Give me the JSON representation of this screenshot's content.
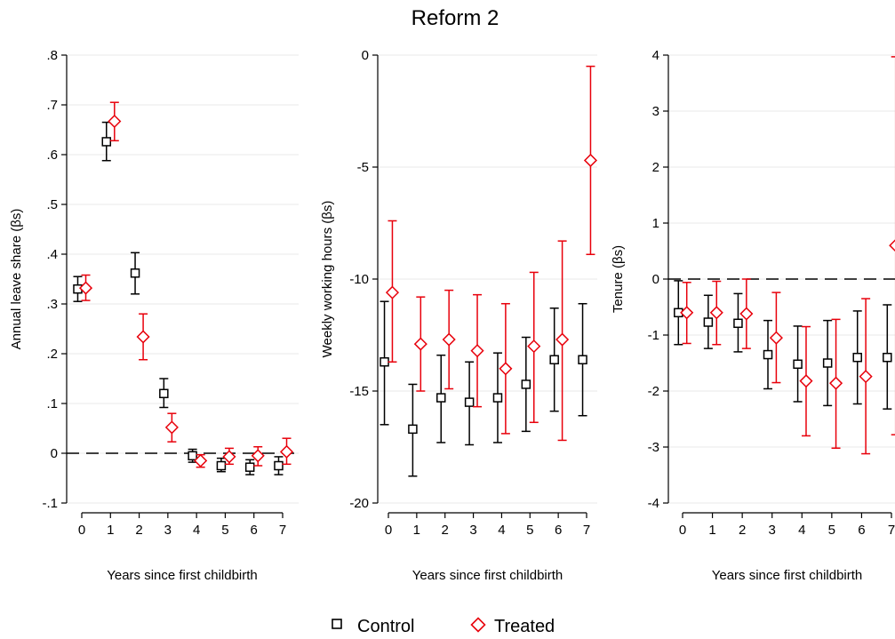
{
  "title": "Reform 2",
  "colors": {
    "control": "#000000",
    "treated": "#e8000b",
    "axis": "#000000",
    "grid": "#eaeaea",
    "zero_line": "#000000"
  },
  "legend": {
    "placement": "bottom-center",
    "items": [
      {
        "label": "Control",
        "marker": "square",
        "color": "#000000"
      },
      {
        "label": "Treated",
        "marker": "diamond",
        "color": "#e8000b"
      }
    ]
  },
  "chart_data": [
    {
      "type": "scatter",
      "subtype": "point-estimates-with-confidence-intervals",
      "xlabel": "Years since first childbirth",
      "ylabel": "Annual leave share (βs)",
      "x_ticks": [
        "0",
        "1",
        "2",
        "3",
        "4",
        "5",
        "6",
        "7"
      ],
      "y_ticks": [
        -0.1,
        0,
        0.1,
        0.2,
        0.3,
        0.4,
        0.5,
        0.6,
        0.7,
        0.8
      ],
      "y_tick_labels": [
        "-.1",
        "0",
        ".1",
        ".2",
        ".3",
        ".4",
        ".5",
        ".6",
        ".7",
        ".8"
      ],
      "ylim": [
        -0.1,
        0.8
      ],
      "grid": true,
      "reference_line": 0,
      "series": [
        {
          "name": "Control",
          "marker": "square",
          "x": [
            0,
            1,
            2,
            3,
            4,
            5,
            6,
            7
          ],
          "y": [
            0.33,
            0.626,
            0.362,
            0.12,
            -0.005,
            -0.025,
            -0.028,
            -0.025
          ],
          "lo": [
            0.305,
            0.588,
            0.32,
            0.092,
            -0.018,
            -0.037,
            -0.043,
            -0.043
          ],
          "hi": [
            0.355,
            0.665,
            0.403,
            0.15,
            0.008,
            -0.01,
            -0.013,
            -0.007
          ]
        },
        {
          "name": "Treated",
          "marker": "diamond",
          "x": [
            0,
            1,
            2,
            3,
            4,
            5,
            6,
            7
          ],
          "y": [
            0.332,
            0.667,
            0.234,
            0.052,
            -0.015,
            -0.007,
            -0.005,
            0.003
          ],
          "lo": [
            0.307,
            0.628,
            0.188,
            0.023,
            -0.028,
            -0.022,
            -0.025,
            -0.022
          ],
          "hi": [
            0.358,
            0.705,
            0.28,
            0.08,
            -0.003,
            0.01,
            0.013,
            0.03
          ]
        }
      ]
    },
    {
      "type": "scatter",
      "subtype": "point-estimates-with-confidence-intervals",
      "xlabel": "Years since first childbirth",
      "ylabel": "Weekly working hours (βs)",
      "x_ticks": [
        "0",
        "1",
        "2",
        "3",
        "4",
        "5",
        "6",
        "7"
      ],
      "y_ticks": [
        -20,
        -15,
        -10,
        -5,
        0
      ],
      "y_tick_labels": [
        "-20",
        "-15",
        "-10",
        "-5",
        "0"
      ],
      "ylim": [
        -20,
        0
      ],
      "grid": true,
      "reference_line": null,
      "series": [
        {
          "name": "Control",
          "marker": "square",
          "x": [
            0,
            1,
            2,
            3,
            4,
            5,
            6,
            7
          ],
          "y": [
            -13.7,
            -16.7,
            -15.3,
            -15.5,
            -15.3,
            -14.7,
            -13.6,
            -13.6
          ],
          "lo": [
            -16.5,
            -18.8,
            -17.3,
            -17.4,
            -17.3,
            -16.8,
            -15.9,
            -16.1
          ],
          "hi": [
            -11.0,
            -14.7,
            -13.4,
            -13.7,
            -13.3,
            -12.6,
            -11.3,
            -11.1
          ]
        },
        {
          "name": "Treated",
          "marker": "diamond",
          "x": [
            0,
            1,
            2,
            3,
            4,
            5,
            6,
            7
          ],
          "y": [
            -10.6,
            -12.9,
            -12.7,
            -13.2,
            -14.0,
            -13.0,
            -12.7,
            -4.7
          ],
          "lo": [
            -13.7,
            -15.0,
            -14.9,
            -15.7,
            -16.9,
            -16.4,
            -17.2,
            -8.9
          ],
          "hi": [
            -7.4,
            -10.8,
            -10.5,
            -10.7,
            -11.1,
            -9.7,
            -8.3,
            -0.5
          ]
        }
      ]
    },
    {
      "type": "scatter",
      "subtype": "point-estimates-with-confidence-intervals",
      "xlabel": "Years since first childbirth",
      "ylabel": "Tenure (βs)",
      "x_ticks": [
        "0",
        "1",
        "2",
        "3",
        "4",
        "5",
        "6",
        "7"
      ],
      "y_ticks": [
        -4,
        -3,
        -2,
        -1,
        0,
        1,
        2,
        3,
        4
      ],
      "y_tick_labels": [
        "-4",
        "-3",
        "-2",
        "-1",
        "0",
        "1",
        "2",
        "3",
        "4"
      ],
      "ylim": [
        -4,
        4
      ],
      "grid": true,
      "reference_line": 0,
      "series": [
        {
          "name": "Control",
          "marker": "square",
          "x": [
            0,
            1,
            2,
            3,
            4,
            5,
            6,
            7
          ],
          "y": [
            -0.6,
            -0.77,
            -0.79,
            -1.35,
            -1.52,
            -1.5,
            -1.4,
            -1.4
          ],
          "lo": [
            -1.17,
            -1.24,
            -1.3,
            -1.96,
            -2.19,
            -2.26,
            -2.23,
            -2.32
          ],
          "hi": [
            -0.03,
            -0.29,
            -0.26,
            -0.74,
            -0.84,
            -0.74,
            -0.57,
            -0.46
          ]
        },
        {
          "name": "Treated",
          "marker": "diamond",
          "x": [
            0,
            1,
            2,
            3,
            4,
            5,
            6,
            7
          ],
          "y": [
            -0.6,
            -0.6,
            -0.62,
            -1.05,
            -1.82,
            -1.86,
            -1.74,
            0.6
          ],
          "lo": [
            -1.15,
            -1.17,
            -1.24,
            -1.85,
            -2.8,
            -3.02,
            -3.12,
            -2.78
          ],
          "hi": [
            -0.06,
            -0.04,
            0.0,
            -0.24,
            -0.85,
            -0.72,
            -0.35,
            3.97
          ]
        }
      ]
    }
  ]
}
